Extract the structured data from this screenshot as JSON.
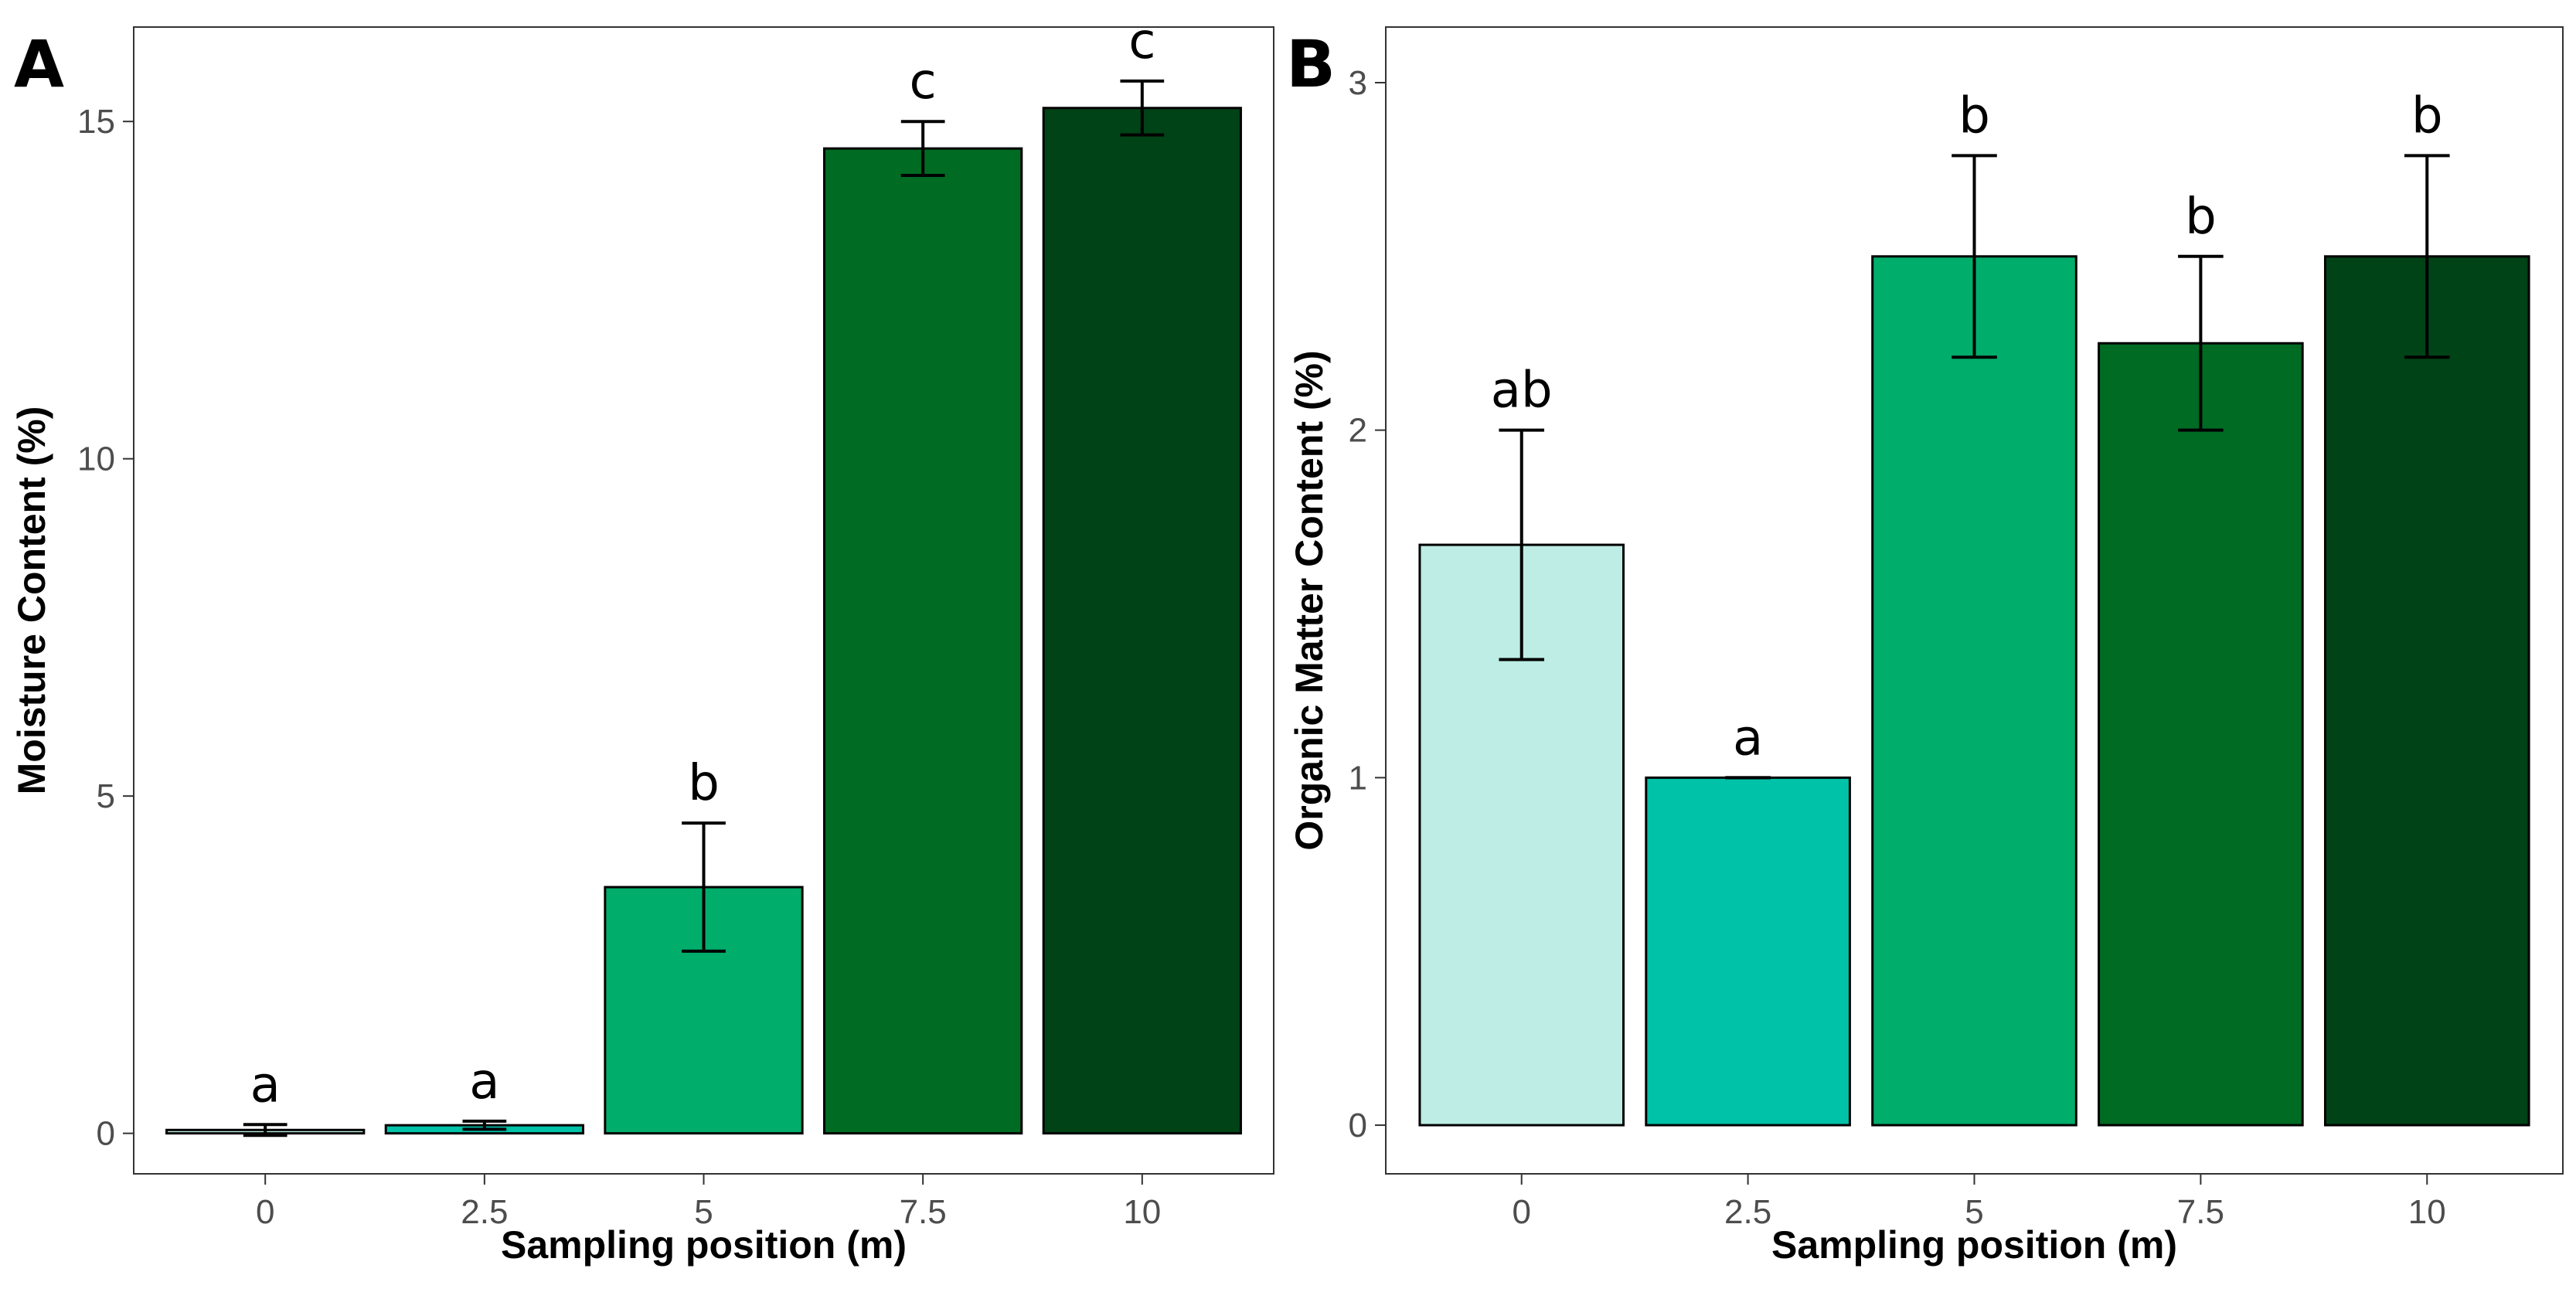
{
  "chart_data": [
    {
      "type": "bar",
      "panel_label": "A",
      "xlabel": "Sampling position (m)",
      "ylabel": "Moisture Content (%)",
      "categories": [
        "0",
        "2.5",
        "5",
        "7.5",
        "10"
      ],
      "values": [
        0.05,
        0.12,
        3.65,
        14.6,
        15.2
      ],
      "errors": [
        0.08,
        0.06,
        0.95,
        0.4,
        0.4
      ],
      "significance": [
        "a",
        "a",
        "b",
        "c",
        "c"
      ],
      "colors": [
        "#bdede5",
        "#00c2a8",
        "#00ad6b",
        "#006b23",
        "#004316"
      ],
      "ylim": [
        -0.6,
        16.4
      ],
      "yticks": [
        0,
        5,
        10,
        15
      ],
      "ytick_labels": [
        "0",
        "5",
        "10",
        "15"
      ]
    },
    {
      "type": "bar",
      "panel_label": "B",
      "xlabel": "Sampling position (m)",
      "ylabel": "Organic Matter Content (%)",
      "categories": [
        "0",
        "2.5",
        "5",
        "7.5",
        "10"
      ],
      "values": [
        1.67,
        1.0,
        2.5,
        2.25,
        2.5
      ],
      "errors": [
        0.33,
        0.0,
        0.29,
        0.25,
        0.29
      ],
      "significance": [
        "ab",
        "a",
        "b",
        "b",
        "b"
      ],
      "colors": [
        "#bdede5",
        "#00c2a8",
        "#00ad6b",
        "#006b23",
        "#004316"
      ],
      "ylim": [
        -0.14,
        3.16
      ],
      "yticks": [
        0,
        1,
        2,
        3
      ],
      "ytick_labels": [
        "0",
        "1",
        "2",
        "3"
      ]
    }
  ]
}
